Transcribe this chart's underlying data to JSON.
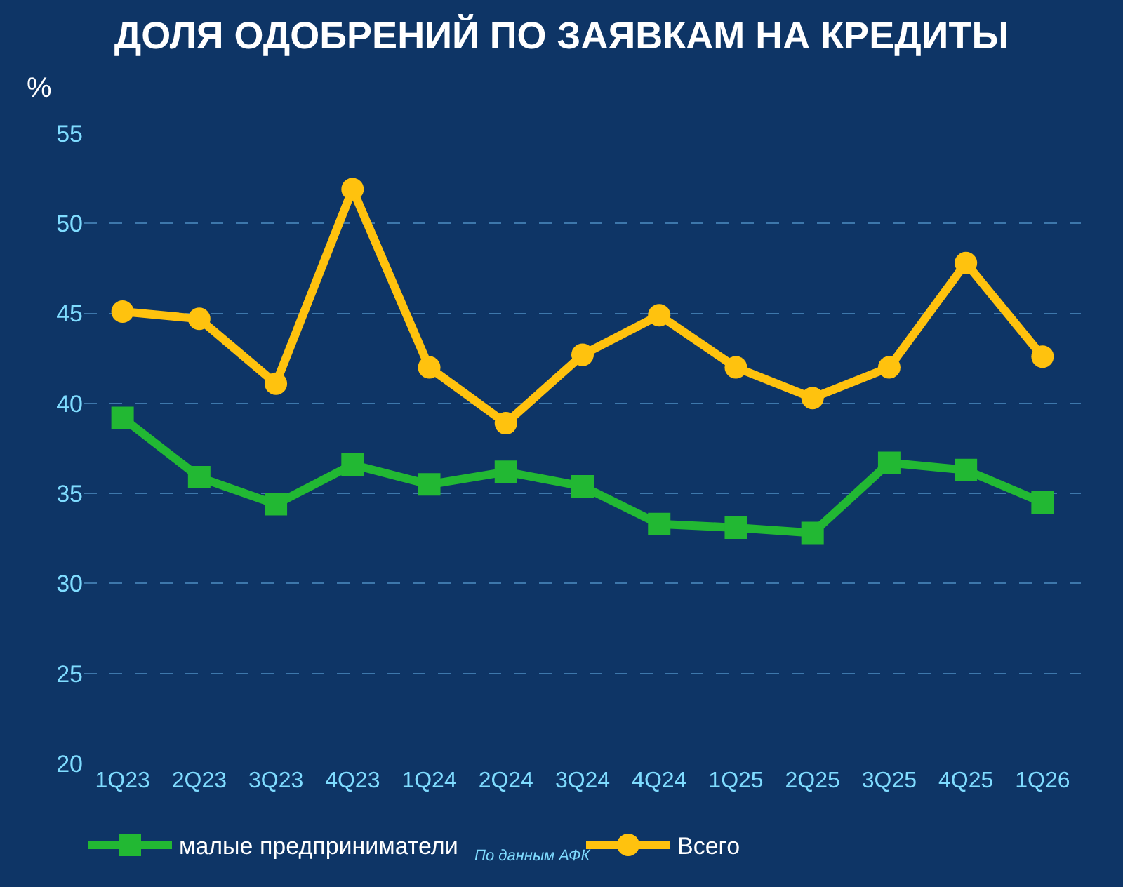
{
  "chart_data": {
    "type": "line",
    "title": "ДОЛЯ ОДОБРЕНИЙ ПО ЗАЯВКАМ НА КРЕДИТЫ",
    "ylabel": "%",
    "categories": [
      "1Q23",
      "2Q23",
      "3Q23",
      "4Q23",
      "1Q24",
      "2Q24",
      "3Q24",
      "4Q24",
      "1Q25",
      "2Q25",
      "3Q25",
      "4Q25",
      "1Q26"
    ],
    "series": [
      {
        "name": "малые предприниматели",
        "color": "#22b833",
        "marker": "square",
        "values": [
          39.2,
          35.9,
          34.4,
          36.6,
          35.5,
          36.2,
          35.4,
          33.3,
          33.1,
          32.8,
          36.7,
          36.3,
          34.5
        ]
      },
      {
        "name": "Всего",
        "color": "#ffc20e",
        "marker": "circle",
        "values": [
          45.1,
          44.7,
          41.1,
          51.9,
          42.0,
          38.9,
          42.7,
          44.9,
          42.0,
          40.3,
          42.0,
          47.8,
          42.6
        ]
      }
    ],
    "ylim": [
      20,
      55
    ],
    "yticks": [
      20,
      25,
      30,
      35,
      40,
      45,
      50,
      55
    ],
    "grid": "y",
    "legend": "bottom",
    "line_style": "solid",
    "annotations": [
      "По данным АФК"
    ]
  }
}
